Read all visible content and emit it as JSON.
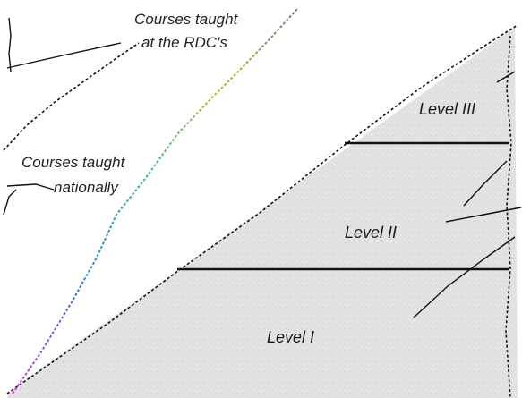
{
  "labels": {
    "rdc_line1": "Courses taught",
    "rdc_line2": "at the RDC's",
    "national_line1": "Courses taught",
    "national_line2": "nationally",
    "level_3": "Level III",
    "level_2": "Level II",
    "level_1": "Level I"
  },
  "colors": {
    "background": "#ffffff",
    "pyramid_fill": "#e2e2e2",
    "line": "#111111",
    "rainbow_line": [
      "#d63ad6",
      "#3a7ad6",
      "#3ab8a0",
      "#b8b83a",
      "#7a7a7a"
    ]
  }
}
